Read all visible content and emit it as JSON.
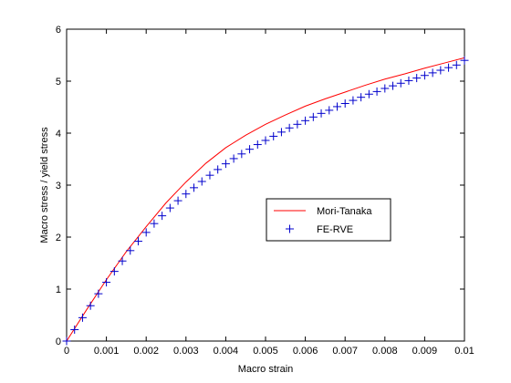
{
  "chart_data": {
    "type": "line",
    "xlabel": "Macro strain",
    "ylabel": "Macro stress / yield stress",
    "xlim": [
      0,
      0.01
    ],
    "ylim": [
      0,
      6
    ],
    "x_ticks": [
      0,
      0.001,
      0.002,
      0.003,
      0.004,
      0.005,
      0.006,
      0.007,
      0.008,
      0.009,
      0.01
    ],
    "x_tick_labels": [
      "0",
      "0.001",
      "0.002",
      "0.003",
      "0.004",
      "0.005",
      "0.006",
      "0.007",
      "0.008",
      "0.009",
      "0.01"
    ],
    "y_ticks": [
      0,
      1,
      2,
      3,
      4,
      5,
      6
    ],
    "y_tick_labels": [
      "0",
      "1",
      "2",
      "3",
      "4",
      "5",
      "6"
    ],
    "grid": false,
    "legend_position": "center-right",
    "series": [
      {
        "name": "Mori-Tanaka",
        "style": "line",
        "color": "#ff0000",
        "x": [
          0,
          0.0005,
          0.001,
          0.0015,
          0.002,
          0.0025,
          0.003,
          0.0035,
          0.004,
          0.0045,
          0.005,
          0.0055,
          0.006,
          0.0065,
          0.007,
          0.0075,
          0.008,
          0.0085,
          0.009,
          0.0095,
          0.01
        ],
        "y": [
          0,
          0.6,
          1.18,
          1.72,
          2.2,
          2.66,
          3.06,
          3.42,
          3.72,
          3.96,
          4.17,
          4.35,
          4.52,
          4.66,
          4.79,
          4.92,
          5.04,
          5.14,
          5.25,
          5.35,
          5.45
        ]
      },
      {
        "name": "FE-RVE",
        "style": "marker",
        "marker": "+",
        "color": "#0000cc",
        "x": [
          0,
          0.0002,
          0.0004,
          0.0006,
          0.0008,
          0.001,
          0.0012,
          0.0014,
          0.0016,
          0.0018,
          0.002,
          0.0022,
          0.0024,
          0.0026,
          0.0028,
          0.003,
          0.0032,
          0.0034,
          0.0036,
          0.0038,
          0.004,
          0.0042,
          0.0044,
          0.0046,
          0.0048,
          0.005,
          0.0052,
          0.0054,
          0.0056,
          0.0058,
          0.006,
          0.0062,
          0.0064,
          0.0066,
          0.0068,
          0.007,
          0.0072,
          0.0074,
          0.0076,
          0.0078,
          0.008,
          0.0082,
          0.0084,
          0.0086,
          0.0088,
          0.009,
          0.0092,
          0.0094,
          0.0096,
          0.0098,
          0.01
        ],
        "y": [
          0,
          0.22,
          0.45,
          0.68,
          0.91,
          1.13,
          1.34,
          1.54,
          1.74,
          1.92,
          2.09,
          2.26,
          2.41,
          2.56,
          2.7,
          2.83,
          2.95,
          3.07,
          3.19,
          3.3,
          3.41,
          3.51,
          3.6,
          3.69,
          3.78,
          3.86,
          3.94,
          4.02,
          4.1,
          4.17,
          4.24,
          4.31,
          4.38,
          4.44,
          4.51,
          4.57,
          4.63,
          4.69,
          4.75,
          4.8,
          4.86,
          4.91,
          4.96,
          5.01,
          5.06,
          5.11,
          5.16,
          5.21,
          5.26,
          5.31,
          5.4
        ]
      }
    ]
  }
}
